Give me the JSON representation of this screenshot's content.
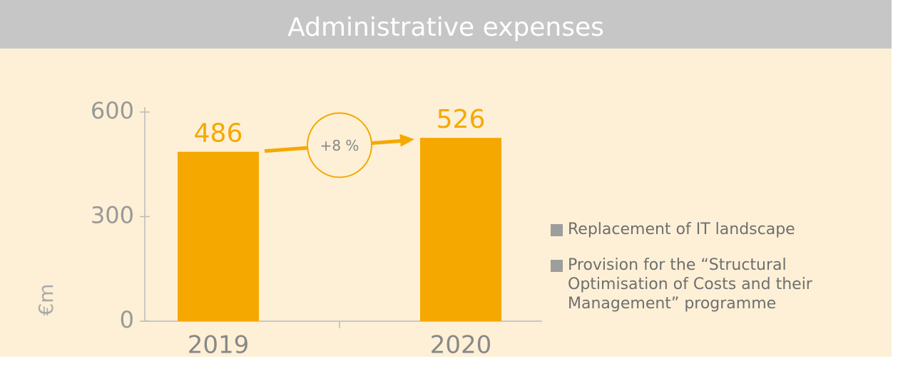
{
  "chart_data": {
    "type": "bar",
    "title": "Administrative expenses",
    "y_label": "€m",
    "categories": [
      "2019",
      "2020"
    ],
    "values": [
      486,
      526
    ],
    "color": "#f5a800",
    "ylim": [
      0,
      600
    ],
    "yticks": [
      0,
      300,
      600
    ],
    "annotation": "+8 %",
    "legend": [
      {
        "name": "Replacement of IT landscape",
        "color": "#9d9d9d"
      },
      {
        "name": "Provision for the “Structural Optimisation of Costs and their Management” programme",
        "color": "#9d9d9d"
      }
    ]
  }
}
